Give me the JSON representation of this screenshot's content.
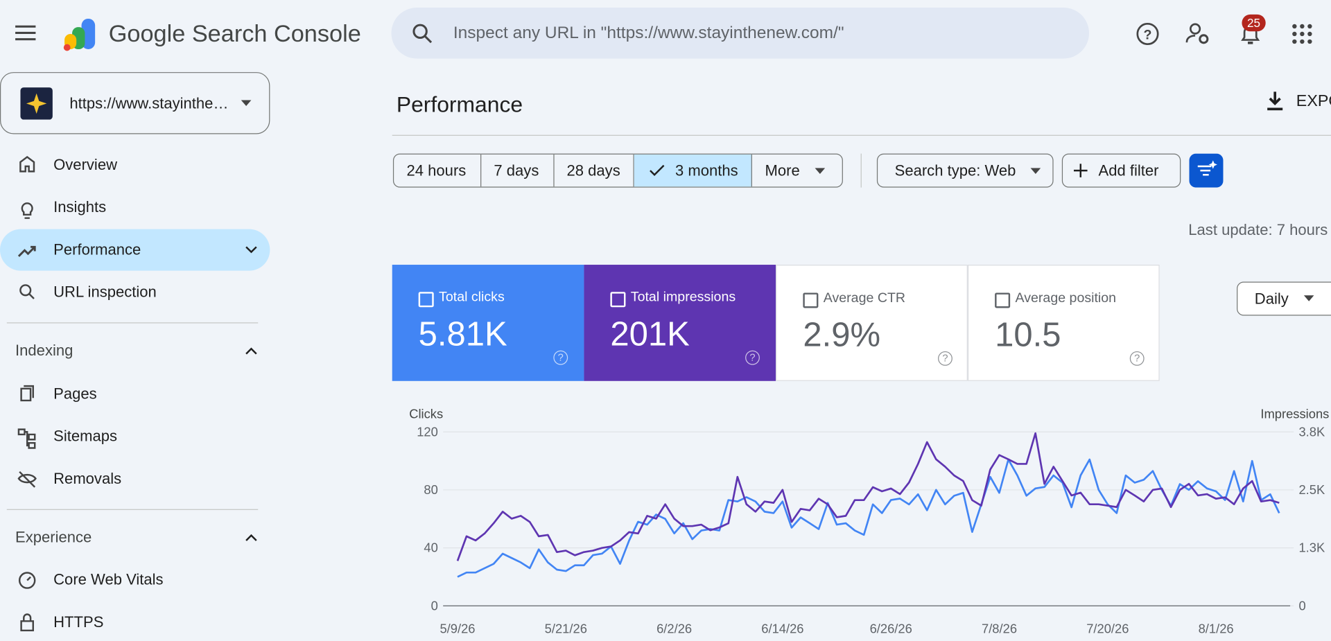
{
  "header": {
    "title": "Google Search Console",
    "search_placeholder": "Inspect any URL in \"https://www.stayinthenew.com/\"",
    "notifications": "25"
  },
  "property": "https://www.stayinthe…",
  "nav": {
    "items": [
      "Overview",
      "Insights",
      "Performance",
      "URL inspection"
    ],
    "sections": [
      {
        "title": "Indexing",
        "items": [
          "Pages",
          "Sitemaps",
          "Removals"
        ]
      },
      {
        "title": "Experience",
        "items": [
          "Core Web Vitals",
          "HTTPS"
        ]
      }
    ]
  },
  "page": {
    "title": "Performance",
    "export": "EXPO",
    "date_filters": [
      "24 hours",
      "7 days",
      "28 days",
      "3 months",
      "More"
    ],
    "search_type": "Search type: Web",
    "add_filter": "Add filter",
    "last_update": "Last update: 7 hours",
    "granularity": "Daily"
  },
  "metrics": [
    {
      "label": "Total clicks",
      "value": "5.81K"
    },
    {
      "label": "Total impressions",
      "value": "201K"
    },
    {
      "label": "Average CTR",
      "value": "2.9%"
    },
    {
      "label": "Average position",
      "value": "10.5"
    }
  ],
  "chart_data": {
    "type": "line",
    "y_label": "Clicks",
    "y2_label": "Impressions",
    "grid": true,
    "x": [
      "5/9/26",
      "5/10/26",
      "5/11/26",
      "5/12/26",
      "5/13/26",
      "5/14/26",
      "5/15/26",
      "5/16/26",
      "5/17/26",
      "5/18/26",
      "5/19/26",
      "5/20/26",
      "5/21/26",
      "5/22/26",
      "5/23/26",
      "5/24/26",
      "5/25/26",
      "5/26/26",
      "5/27/26",
      "5/28/26",
      "5/29/26",
      "5/30/26",
      "5/31/26",
      "6/1/26",
      "6/2/26",
      "6/3/26",
      "6/4/26",
      "6/5/26",
      "6/6/26",
      "6/7/26",
      "6/8/26",
      "6/9/26",
      "6/10/26",
      "6/11/26",
      "6/12/26",
      "6/13/26",
      "6/14/26",
      "6/15/26",
      "6/16/26",
      "6/17/26",
      "6/18/26",
      "6/19/26",
      "6/20/26",
      "6/21/26",
      "6/22/26",
      "6/23/26",
      "6/24/26",
      "6/25/26",
      "6/26/26",
      "6/27/26",
      "6/28/26",
      "6/29/26",
      "6/30/26",
      "7/1/26",
      "7/2/26",
      "7/3/26",
      "7/4/26",
      "7/5/26",
      "7/6/26",
      "7/7/26",
      "7/8/26",
      "7/9/26",
      "7/10/26",
      "7/11/26",
      "7/12/26",
      "7/13/26",
      "7/14/26",
      "7/15/26",
      "7/16/26",
      "7/17/26",
      "7/18/26",
      "7/19/26",
      "7/20/26",
      "7/21/26",
      "7/22/26",
      "7/23/26",
      "7/24/26",
      "7/25/26",
      "7/26/26",
      "7/27/26",
      "7/28/26",
      "7/29/26",
      "7/30/26",
      "7/31/26",
      "8/1/26",
      "8/2/26",
      "8/3/26",
      "8/4/26",
      "8/5/26",
      "8/6/26",
      "8/7/26",
      "8/8/26"
    ],
    "xticks": [
      "5/9/26",
      "5/21/26",
      "6/2/26",
      "6/14/26",
      "6/26/26",
      "7/8/26",
      "7/20/26",
      "8/1/26"
    ],
    "ylim": [
      0,
      120
    ],
    "yticks": [
      0,
      40,
      80,
      120
    ],
    "y2lim": [
      0,
      3750
    ],
    "y2ticks": [
      0,
      {
        "value": 1250,
        "label": "1.3K"
      },
      {
        "value": 2500,
        "label": "2.5K"
      },
      {
        "value": 3750,
        "label": "3.8K"
      }
    ],
    "series": [
      {
        "name": "Total clicks",
        "color": "#4285f4",
        "values": [
          20,
          23,
          23,
          26,
          29,
          36,
          33,
          30,
          26,
          39,
          30,
          25,
          24,
          28,
          28,
          35,
          36,
          41,
          29,
          45,
          58,
          56,
          63,
          60,
          50,
          57,
          46,
          52,
          53,
          52,
          73,
          72,
          75,
          72,
          65,
          64,
          72,
          54,
          61,
          57,
          53,
          71,
          56,
          57,
          52,
          49,
          70,
          64,
          73,
          74,
          70,
          77,
          66,
          80,
          70,
          76,
          78,
          51,
          70,
          89,
          78,
          101,
          90,
          76,
          81,
          82,
          90,
          85,
          68,
          90,
          101,
          80,
          70,
          64,
          90,
          85,
          87,
          93,
          80,
          69,
          84,
          80,
          86,
          81,
          79,
          73,
          93,
          72,
          100,
          73,
          77,
          64
        ]
      },
      {
        "name": "Total impressions",
        "color": "#5e35b1",
        "axis": "y2",
        "values": [
          970,
          1500,
          1410,
          1560,
          1780,
          2030,
          1880,
          1940,
          1810,
          1500,
          1530,
          1160,
          1190,
          1090,
          1160,
          1190,
          1250,
          1280,
          1410,
          1590,
          1560,
          1940,
          1880,
          2190,
          1880,
          1720,
          1720,
          1750,
          1630,
          1690,
          1780,
          2780,
          2190,
          2030,
          2250,
          2220,
          2500,
          1810,
          2090,
          2060,
          2310,
          2190,
          1910,
          1940,
          2280,
          2280,
          2560,
          2470,
          2530,
          2410,
          2660,
          3060,
          3530,
          3160,
          3000,
          2810,
          2690,
          2280,
          2160,
          2940,
          3250,
          3160,
          3060,
          3060,
          3720,
          2630,
          3000,
          2690,
          2380,
          2440,
          2190,
          2190,
          2160,
          2130,
          2500,
          2380,
          2250,
          2500,
          2530,
          2130,
          2500,
          2630,
          2380,
          2410,
          2310,
          2340,
          2190,
          2530,
          2690,
          2250,
          2280,
          2220
        ]
      }
    ]
  }
}
